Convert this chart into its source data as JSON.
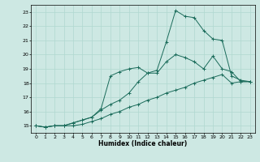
{
  "xlabel": "Humidex (Indice chaleur)",
  "xlim": [
    -0.5,
    23.5
  ],
  "ylim": [
    14.5,
    23.5
  ],
  "xticks": [
    0,
    1,
    2,
    3,
    4,
    5,
    6,
    7,
    8,
    9,
    10,
    11,
    12,
    13,
    14,
    15,
    16,
    17,
    18,
    19,
    20,
    21,
    22,
    23
  ],
  "yticks": [
    15,
    16,
    17,
    18,
    19,
    20,
    21,
    22,
    23
  ],
  "bg_color": "#cde8e3",
  "grid_color": "#b0d8d0",
  "line_color": "#1a6b5a",
  "line1_x": [
    0,
    1,
    2,
    3,
    4,
    5,
    6,
    7,
    8,
    9,
    10,
    11,
    12,
    13,
    14,
    15,
    16,
    17,
    18,
    19,
    20,
    21,
    22,
    23
  ],
  "line1_y": [
    15,
    14.9,
    15,
    15,
    15,
    15.1,
    15.3,
    15.5,
    15.8,
    16.0,
    16.3,
    16.5,
    16.8,
    17.0,
    17.3,
    17.5,
    17.7,
    18.0,
    18.2,
    18.4,
    18.6,
    18.0,
    18.1,
    18.1
  ],
  "line2_x": [
    0,
    1,
    2,
    3,
    4,
    5,
    6,
    7,
    8,
    9,
    10,
    11,
    12,
    13,
    14,
    15,
    16,
    17,
    18,
    19,
    20,
    21,
    22,
    23
  ],
  "line2_y": [
    15,
    14.9,
    15,
    15,
    15.2,
    15.4,
    15.6,
    16.2,
    18.5,
    18.8,
    19.0,
    19.1,
    18.7,
    18.7,
    19.5,
    20.0,
    19.8,
    19.5,
    19.0,
    19.9,
    19.0,
    18.8,
    18.1,
    18.1
  ],
  "line3_x": [
    0,
    1,
    2,
    3,
    4,
    5,
    6,
    7,
    8,
    9,
    10,
    11,
    12,
    13,
    14,
    15,
    16,
    17,
    18,
    19,
    20,
    21,
    22,
    23
  ],
  "line3_y": [
    15,
    14.9,
    15,
    15,
    15.2,
    15.4,
    15.6,
    16.1,
    16.5,
    16.8,
    17.3,
    18.1,
    18.7,
    18.9,
    20.9,
    23.1,
    22.7,
    22.6,
    21.7,
    21.1,
    21.0,
    18.5,
    18.2,
    18.1
  ]
}
